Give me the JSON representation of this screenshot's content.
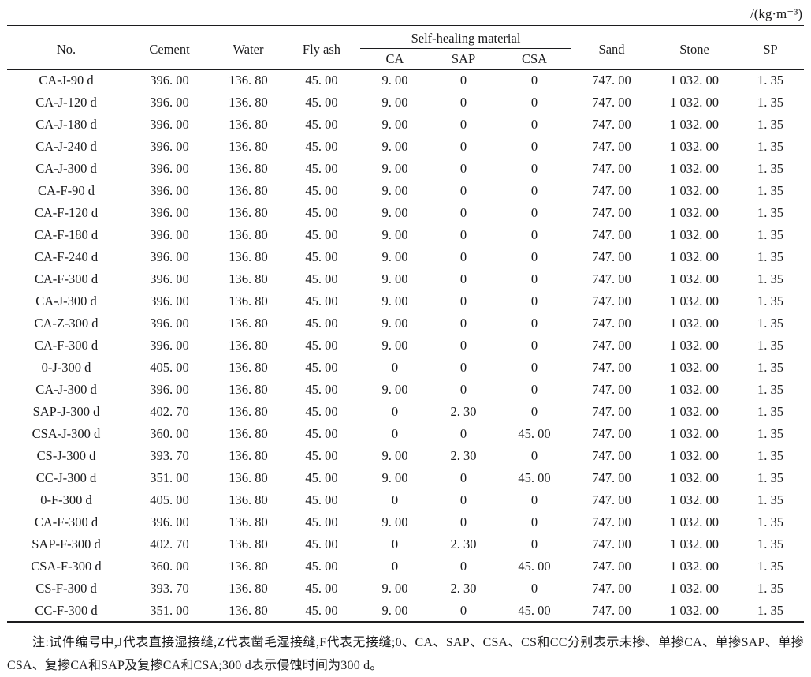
{
  "unit_label": "/(kg·m⁻³)",
  "table": {
    "group_header": "Self-healing material",
    "columns": {
      "no": "No.",
      "cement": "Cement",
      "water": "Water",
      "fly_ash": "Fly ash",
      "ca": "CA",
      "sap": "SAP",
      "csa": "CSA",
      "sand": "Sand",
      "stone": "Stone",
      "sp": "SP"
    },
    "rows": [
      [
        "CA-J-90 d",
        "396. 00",
        "136. 80",
        "45. 00",
        "9. 00",
        "0",
        "0",
        "747. 00",
        "1 032. 00",
        "1. 35"
      ],
      [
        "CA-J-120 d",
        "396. 00",
        "136. 80",
        "45. 00",
        "9. 00",
        "0",
        "0",
        "747. 00",
        "1 032. 00",
        "1. 35"
      ],
      [
        "CA-J-180 d",
        "396. 00",
        "136. 80",
        "45. 00",
        "9. 00",
        "0",
        "0",
        "747. 00",
        "1 032. 00",
        "1. 35"
      ],
      [
        "CA-J-240 d",
        "396. 00",
        "136. 80",
        "45. 00",
        "9. 00",
        "0",
        "0",
        "747. 00",
        "1 032. 00",
        "1. 35"
      ],
      [
        "CA-J-300 d",
        "396. 00",
        "136. 80",
        "45. 00",
        "9. 00",
        "0",
        "0",
        "747. 00",
        "1 032. 00",
        "1. 35"
      ],
      [
        "CA-F-90 d",
        "396. 00",
        "136. 80",
        "45. 00",
        "9. 00",
        "0",
        "0",
        "747. 00",
        "1 032. 00",
        "1. 35"
      ],
      [
        "CA-F-120 d",
        "396. 00",
        "136. 80",
        "45. 00",
        "9. 00",
        "0",
        "0",
        "747. 00",
        "1 032. 00",
        "1. 35"
      ],
      [
        "CA-F-180 d",
        "396. 00",
        "136. 80",
        "45. 00",
        "9. 00",
        "0",
        "0",
        "747. 00",
        "1 032. 00",
        "1. 35"
      ],
      [
        "CA-F-240 d",
        "396. 00",
        "136. 80",
        "45. 00",
        "9. 00",
        "0",
        "0",
        "747. 00",
        "1 032. 00",
        "1. 35"
      ],
      [
        "CA-F-300 d",
        "396. 00",
        "136. 80",
        "45. 00",
        "9. 00",
        "0",
        "0",
        "747. 00",
        "1 032. 00",
        "1. 35"
      ],
      [
        "CA-J-300 d",
        "396. 00",
        "136. 80",
        "45. 00",
        "9. 00",
        "0",
        "0",
        "747. 00",
        "1 032. 00",
        "1. 35"
      ],
      [
        "CA-Z-300 d",
        "396. 00",
        "136. 80",
        "45. 00",
        "9. 00",
        "0",
        "0",
        "747. 00",
        "1 032. 00",
        "1. 35"
      ],
      [
        "CA-F-300 d",
        "396. 00",
        "136. 80",
        "45. 00",
        "9. 00",
        "0",
        "0",
        "747. 00",
        "1 032. 00",
        "1. 35"
      ],
      [
        "0-J-300 d",
        "405. 00",
        "136. 80",
        "45. 00",
        "0",
        "0",
        "0",
        "747. 00",
        "1 032. 00",
        "1. 35"
      ],
      [
        "CA-J-300 d",
        "396. 00",
        "136. 80",
        "45. 00",
        "9. 00",
        "0",
        "0",
        "747. 00",
        "1 032. 00",
        "1. 35"
      ],
      [
        "SAP-J-300 d",
        "402. 70",
        "136. 80",
        "45. 00",
        "0",
        "2. 30",
        "0",
        "747. 00",
        "1 032. 00",
        "1. 35"
      ],
      [
        "CSA-J-300 d",
        "360. 00",
        "136. 80",
        "45. 00",
        "0",
        "0",
        "45. 00",
        "747. 00",
        "1 032. 00",
        "1. 35"
      ],
      [
        "CS-J-300 d",
        "393. 70",
        "136. 80",
        "45. 00",
        "9. 00",
        "2. 30",
        "0",
        "747. 00",
        "1 032. 00",
        "1. 35"
      ],
      [
        "CC-J-300 d",
        "351. 00",
        "136. 80",
        "45. 00",
        "9. 00",
        "0",
        "45. 00",
        "747. 00",
        "1 032. 00",
        "1. 35"
      ],
      [
        "0-F-300 d",
        "405. 00",
        "136. 80",
        "45. 00",
        "0",
        "0",
        "0",
        "747. 00",
        "1 032. 00",
        "1. 35"
      ],
      [
        "CA-F-300 d",
        "396. 00",
        "136. 80",
        "45. 00",
        "9. 00",
        "0",
        "0",
        "747. 00",
        "1 032. 00",
        "1. 35"
      ],
      [
        "SAP-F-300 d",
        "402. 70",
        "136. 80",
        "45. 00",
        "0",
        "2. 30",
        "0",
        "747. 00",
        "1 032. 00",
        "1. 35"
      ],
      [
        "CSA-F-300 d",
        "360. 00",
        "136. 80",
        "45. 00",
        "0",
        "0",
        "45. 00",
        "747. 00",
        "1 032. 00",
        "1. 35"
      ],
      [
        "CS-F-300 d",
        "393. 70",
        "136. 80",
        "45. 00",
        "9. 00",
        "2. 30",
        "0",
        "747. 00",
        "1 032. 00",
        "1. 35"
      ],
      [
        "CC-F-300 d",
        "351. 00",
        "136. 80",
        "45. 00",
        "9. 00",
        "0",
        "45. 00",
        "747. 00",
        "1 032. 00",
        "1. 35"
      ]
    ]
  },
  "footnote": "注:试件编号中,J代表直接湿接缝,Z代表凿毛湿接缝,F代表无接缝;0、CA、SAP、CSA、CS和CC分别表示未掺、单掺CA、单掺SAP、单掺CSA、复掺CA和SAP及复掺CA和CSA;300 d表示侵蚀时间为300 d。"
}
